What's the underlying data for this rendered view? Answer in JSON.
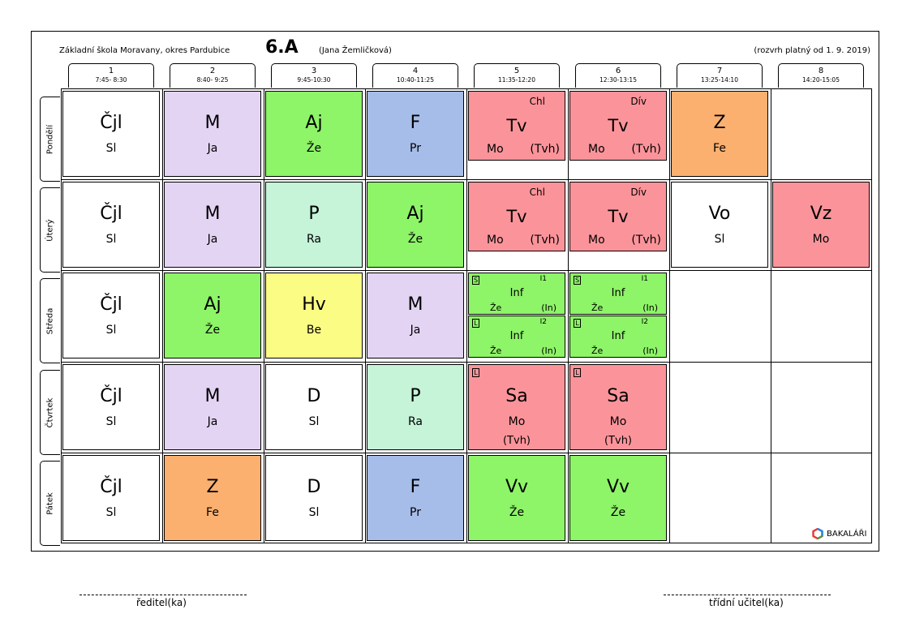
{
  "header": {
    "school": "Základní škola Moravany, okres Pardubice",
    "class_name": "6.A",
    "class_teacher": "(Jana Žemličková)",
    "validity": "(rozvrh platný od 1. 9. 2019)"
  },
  "periods": [
    {
      "num": "1",
      "time": "7:45- 8:30"
    },
    {
      "num": "2",
      "time": "8:40- 9:25"
    },
    {
      "num": "3",
      "time": "9:45-10:30"
    },
    {
      "num": "4",
      "time": "10:40-11:25"
    },
    {
      "num": "5",
      "time": "11:35-12:20"
    },
    {
      "num": "6",
      "time": "12:30-13:15"
    },
    {
      "num": "7",
      "time": "13:25-14:10"
    },
    {
      "num": "8",
      "time": "14:20-15:05"
    }
  ],
  "days": [
    "Pondělí",
    "Úterý",
    "Středa",
    "Čtvrtek",
    "Pátek"
  ],
  "colors": {
    "white": "#ffffff",
    "lavender": "#e4d4f4",
    "green": "#8ef468",
    "blue": "#a6bde9",
    "red": "#fb949a",
    "orange": "#fbb070",
    "mint": "#c5f4d9",
    "yellow": "#fbfc84"
  },
  "lessons": {
    "mon": [
      {
        "subject": "Čjl",
        "teacher": "Sl",
        "color": "#ffffff"
      },
      {
        "subject": "M",
        "teacher": "Ja",
        "color": "#e4d4f4"
      },
      {
        "subject": "Aj",
        "teacher": "Že",
        "color": "#8ef468"
      },
      {
        "subject": "F",
        "teacher": "Pr",
        "color": "#a6bde9"
      },
      {
        "subject": "Tv",
        "teacher": "Mo",
        "group": "Chl",
        "room": "(Tvh)",
        "color": "#fb949a"
      },
      {
        "subject": "Tv",
        "teacher": "Mo",
        "group": "Dív",
        "room": "(Tvh)",
        "color": "#fb949a"
      },
      {
        "subject": "Z",
        "teacher": "Fe",
        "color": "#fbb070"
      }
    ],
    "tue": [
      {
        "subject": "Čjl",
        "teacher": "Sl",
        "color": "#ffffff"
      },
      {
        "subject": "M",
        "teacher": "Ja",
        "color": "#e4d4f4"
      },
      {
        "subject": "P",
        "teacher": "Ra",
        "color": "#c5f4d9"
      },
      {
        "subject": "Aj",
        "teacher": "Že",
        "color": "#8ef468"
      },
      {
        "subject": "Tv",
        "teacher": "Mo",
        "group": "Chl",
        "room": "(Tvh)",
        "color": "#fb949a"
      },
      {
        "subject": "Tv",
        "teacher": "Mo",
        "group": "Dív",
        "room": "(Tvh)",
        "color": "#fb949a"
      },
      {
        "subject": "Vo",
        "teacher": "Sl",
        "color": "#ffffff"
      },
      {
        "subject": "Vz",
        "teacher": "Mo",
        "color": "#fb949a"
      }
    ],
    "wed": [
      {
        "subject": "Čjl",
        "teacher": "Sl",
        "color": "#ffffff"
      },
      {
        "subject": "Aj",
        "teacher": "Že",
        "color": "#8ef468"
      },
      {
        "subject": "Hv",
        "teacher": "Be",
        "color": "#fbfc84"
      },
      {
        "subject": "M",
        "teacher": "Ja",
        "color": "#e4d4f4"
      }
    ],
    "wed_split": [
      {
        "tag": "S",
        "group": "I1",
        "subject": "Inf",
        "teacher": "Že",
        "room": "(In)"
      },
      {
        "tag": "L",
        "group": "I2",
        "subject": "Inf",
        "teacher": "Že",
        "room": "(In)"
      }
    ],
    "thu": [
      {
        "subject": "Čjl",
        "teacher": "Sl",
        "color": "#ffffff"
      },
      {
        "subject": "M",
        "teacher": "Ja",
        "color": "#e4d4f4"
      },
      {
        "subject": "D",
        "teacher": "Sl",
        "color": "#ffffff"
      },
      {
        "subject": "P",
        "teacher": "Ra",
        "color": "#c5f4d9"
      },
      {
        "subject": "Sa",
        "teacher": "Mo",
        "tag": "L",
        "room": "(Tvh)",
        "color": "#fb949a"
      },
      {
        "subject": "Sa",
        "teacher": "Mo",
        "tag": "L",
        "room": "(Tvh)",
        "color": "#fb949a"
      }
    ],
    "fri": [
      {
        "subject": "Čjl",
        "teacher": "Sl",
        "color": "#ffffff"
      },
      {
        "subject": "Z",
        "teacher": "Fe",
        "color": "#fbb070"
      },
      {
        "subject": "D",
        "teacher": "Sl",
        "color": "#ffffff"
      },
      {
        "subject": "F",
        "teacher": "Pr",
        "color": "#a6bde9"
      },
      {
        "subject": "Vv",
        "teacher": "Že",
        "color": "#8ef468"
      },
      {
        "subject": "Vv",
        "teacher": "Že",
        "color": "#8ef468"
      }
    ]
  },
  "logo": {
    "text": "BAKALÁŘI",
    "icon": "bakalari-logo-icon"
  },
  "signatures": {
    "left": "ředitel(ka)",
    "right": "třídní učitel(ka)"
  }
}
